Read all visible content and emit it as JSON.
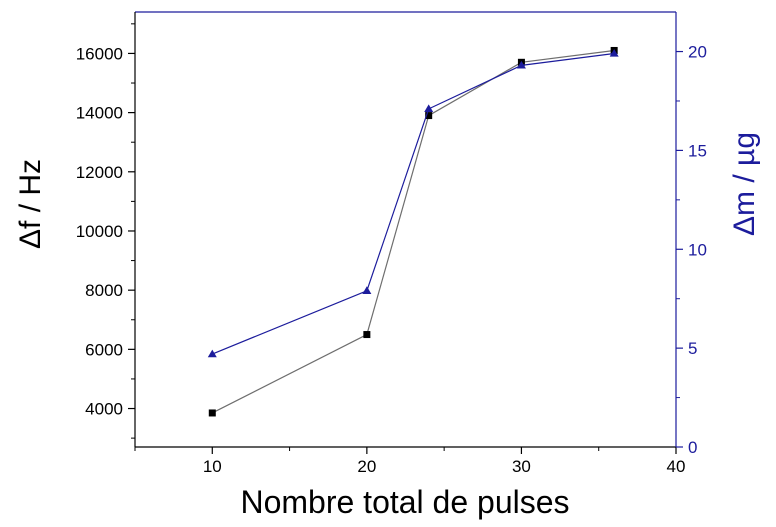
{
  "colors": {
    "left_axis": "#000000",
    "right_axis": "#1c1c9c",
    "series_freq_line": "#6e6e6e",
    "series_freq_marker": "#000000",
    "series_mass": "#1c1c9c"
  },
  "chart_data": {
    "type": "line",
    "title": "",
    "xlabel": "Nombre total de pulses",
    "ylabel_left": "Δf / Hz",
    "ylabel_right": "Δm / µg",
    "xlim": [
      5,
      40
    ],
    "ylim_left": [
      2700,
      17400
    ],
    "ylim_right": [
      0,
      22
    ],
    "xticks": [
      10,
      20,
      30,
      40
    ],
    "yticks_left": [
      4000,
      6000,
      8000,
      10000,
      12000,
      14000,
      16000
    ],
    "yticks_right": [
      0,
      5,
      10,
      15,
      20
    ],
    "grid": false,
    "legend": "none",
    "series": [
      {
        "axis": "left",
        "marker": "square",
        "x": [
          10,
          20,
          24,
          30,
          36
        ],
        "y": [
          3850,
          6500,
          13900,
          15700,
          16100
        ]
      },
      {
        "axis": "right",
        "marker": "triangle",
        "x": [
          10,
          20,
          24,
          30,
          36
        ],
        "y": [
          4.7,
          7.9,
          17.1,
          19.3,
          19.9
        ]
      }
    ]
  }
}
